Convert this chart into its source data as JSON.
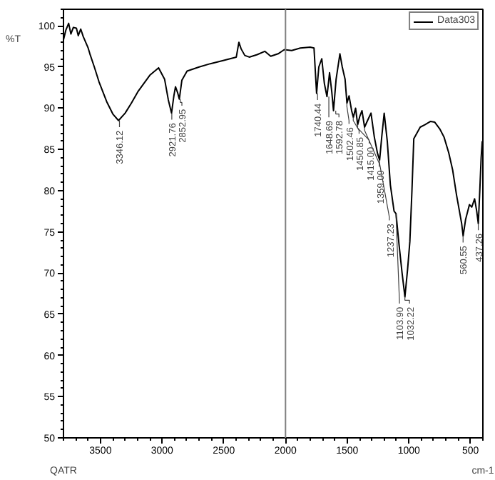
{
  "chart_data": {
    "type": "line",
    "ylabel": "%T",
    "xlabel": "cm-1",
    "xlim": [
      3800,
      400
    ],
    "ylim": [
      50,
      102
    ],
    "xticks": [
      3500,
      3000,
      2500,
      2000,
      1500,
      1000,
      500
    ],
    "yticks": [
      50,
      55,
      60,
      65,
      70,
      75,
      80,
      85,
      90,
      95,
      100
    ],
    "grid": false,
    "legend": "top right",
    "marker": "none",
    "line_style": "solid",
    "ref_lines": [
      {
        "axis": "x",
        "value": 2000,
        "color": "#808080"
      }
    ],
    "series": [
      {
        "name": "Data303",
        "color": "#000000",
        "x": [
          3800,
          3780,
          3758,
          3740,
          3720,
          3695,
          3680,
          3660,
          3640,
          3620,
          3600,
          3586,
          3550,
          3512,
          3450,
          3400,
          3354,
          3300,
          3250,
          3197,
          3100,
          3029,
          2980,
          2950,
          2924,
          2905,
          2892,
          2875,
          2861,
          2840,
          2798,
          2700,
          2609,
          2500,
          2399,
          2378,
          2360,
          2330,
          2294,
          2230,
          2168,
          2120,
          2060,
          2010,
          1950,
          1880,
          1800,
          1769,
          1748,
          1730,
          1706,
          1685,
          1664,
          1643,
          1625,
          1611,
          1590,
          1559,
          1540,
          1517,
          1502,
          1485,
          1464,
          1450,
          1432,
          1415,
          1398,
          1380,
          1359,
          1335,
          1307,
          1280,
          1254,
          1237,
          1220,
          1200,
          1175,
          1150,
          1120,
          1104,
          1080,
          1055,
          1032,
          1010,
          992,
          975,
          960,
          908,
          870,
          824,
          790,
          750,
          715,
          677,
          645,
          614,
          590,
          572,
          560,
          540,
          509,
          490,
          467,
          450,
          437,
          425,
          414,
          405
        ],
        "values": [
          98.3,
          99.5,
          100.3,
          99.0,
          99.8,
          99.7,
          98.8,
          99.6,
          98.7,
          98.0,
          97.3,
          96.6,
          95.0,
          93.2,
          90.8,
          89.3,
          88.5,
          89.4,
          90.6,
          92.0,
          94.0,
          94.9,
          93.5,
          91.0,
          89.4,
          91.5,
          92.6,
          91.9,
          91.1,
          93.4,
          94.5,
          95.0,
          95.4,
          95.8,
          96.2,
          98.0,
          97.2,
          96.4,
          96.2,
          96.5,
          96.9,
          96.3,
          96.6,
          97.1,
          97.0,
          97.3,
          97.4,
          97.3,
          91.8,
          95.0,
          96.0,
          93.0,
          91.4,
          94.3,
          92.0,
          89.7,
          93.5,
          96.6,
          95.0,
          93.5,
          90.6,
          91.5,
          89.7,
          88.9,
          90.0,
          88.0,
          89.0,
          89.7,
          87.7,
          88.5,
          89.4,
          86.5,
          84.5,
          83.7,
          86.5,
          89.4,
          86.0,
          80.7,
          77.5,
          77.2,
          73.5,
          70.0,
          67.1,
          70.5,
          73.8,
          80.0,
          86.3,
          87.7,
          88.0,
          88.4,
          88.3,
          87.5,
          86.5,
          84.6,
          82.5,
          79.5,
          77.5,
          76.0,
          74.5,
          76.5,
          78.3,
          78.0,
          79.0,
          77.5,
          76.0,
          80.0,
          84.0,
          86.0
        ]
      }
    ],
    "annotations": [
      {
        "text": "3346.12",
        "x": 3346.12,
        "y": 88.5
      },
      {
        "text": "2921.76",
        "x": 2921.76,
        "y": 89.4
      },
      {
        "text": "2852.95",
        "x": 2852.95,
        "y": 91.1
      },
      {
        "text": "1740.44",
        "x": 1740.44,
        "y": 91.8
      },
      {
        "text": "1648.69",
        "x": 1648.69,
        "y": 91.4
      },
      {
        "text": "1592.78",
        "x": 1592.78,
        "y": 89.7
      },
      {
        "text": "1502.46",
        "x": 1502.46,
        "y": 90.6
      },
      {
        "text": "1450.85",
        "x": 1450.85,
        "y": 88.9
      },
      {
        "text": "1415.00",
        "x": 1415.0,
        "y": 88.0
      },
      {
        "text": "1359.09",
        "x": 1359.09,
        "y": 87.7
      },
      {
        "text": "1237.23",
        "x": 1237.23,
        "y": 83.7
      },
      {
        "text": "1103.90",
        "x": 1103.9,
        "y": 77.2
      },
      {
        "text": "1032.22",
        "x": 1032.22,
        "y": 67.1
      },
      {
        "text": "560.55",
        "x": 560.55,
        "y": 74.5
      },
      {
        "text": "437.26",
        "x": 437.26,
        "y": 76.0
      },
      "QATR"
    ]
  }
}
